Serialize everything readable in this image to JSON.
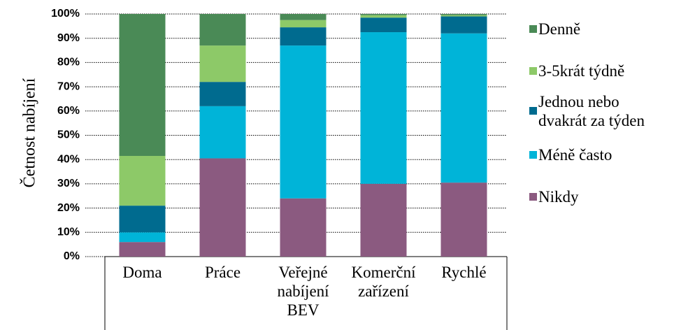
{
  "chart_data": {
    "type": "stacked_bar",
    "y_label": "Četnost nabíjení",
    "categories": [
      "Doma",
      "Práce",
      "Veřejné nabíjení BEV",
      "Komerční zařízení",
      "Rychlé"
    ],
    "series": [
      {
        "name": "Nikdy",
        "color": "#8b5a80",
        "values": [
          6,
          40.5,
          24,
          30,
          30.5
        ]
      },
      {
        "name": "Méně často",
        "color": "#00b4d8",
        "values": [
          4,
          21.5,
          63,
          62.5,
          61.5
        ]
      },
      {
        "name": "Jednou nebo dvakrát za týden",
        "color": "#006b8f",
        "values": [
          11,
          10,
          7.5,
          6,
          7
        ]
      },
      {
        "name": "3-5krát týdně",
        "color": "#8dc968",
        "values": [
          20.5,
          15,
          3,
          1,
          0.5
        ]
      },
      {
        "name": "Denně",
        "color": "#4a8a56",
        "values": [
          58.5,
          13,
          2.5,
          0.5,
          0.5
        ]
      }
    ],
    "ylim": [
      0,
      100
    ],
    "yticks": [
      {
        "value": 0,
        "label": "0%"
      },
      {
        "value": 10,
        "label": "10%"
      },
      {
        "value": 20,
        "label": "20%"
      },
      {
        "value": 30,
        "label": "30%"
      },
      {
        "value": 40,
        "label": "40%"
      },
      {
        "value": 50,
        "label": "50%"
      },
      {
        "value": 60,
        "label": "60%"
      },
      {
        "value": 70,
        "label": "70%"
      },
      {
        "value": 80,
        "label": "80%"
      },
      {
        "value": 90,
        "label": "90%"
      },
      {
        "value": 100,
        "label": "100%"
      }
    ],
    "grid": true,
    "legend": "right"
  }
}
